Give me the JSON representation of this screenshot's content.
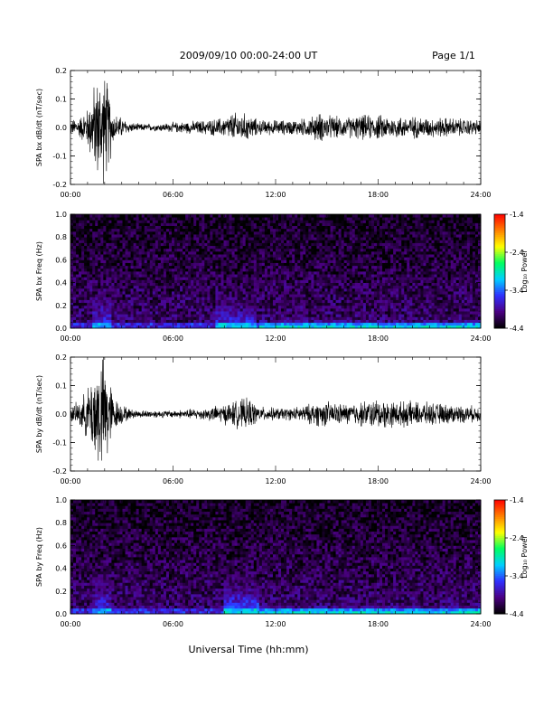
{
  "header": {
    "date_range": "2009/09/10  00:00-24:00 UT",
    "page": "Page 1/1"
  },
  "xlabel": "Universal Time (hh:mm)",
  "x_tick_labels": [
    "00:00",
    "06:00",
    "12:00",
    "18:00",
    "24:00"
  ],
  "chart_data": [
    {
      "type": "line",
      "title": "",
      "ylabel": "SPA bx dB/dt (nT/sec)",
      "xlabel": "",
      "xlim": [
        0,
        24
      ],
      "ylim": [
        -0.2,
        0.2
      ],
      "y_ticks": [
        -0.2,
        -0.1,
        0.0,
        0.1,
        0.2
      ],
      "y_tick_labels": [
        "-0.2",
        "-0.1",
        "0.0",
        "0.1",
        "0.2"
      ],
      "envelope": {
        "x_hours": [
          0,
          0.5,
          1.0,
          1.5,
          2.0,
          2.3,
          2.5,
          3.0,
          3.5,
          4,
          5,
          6,
          7,
          8,
          9,
          9.5,
          10,
          10.5,
          11,
          12,
          13,
          14,
          14.5,
          15,
          16,
          17,
          18,
          19,
          20,
          21,
          22,
          23,
          24
        ],
        "amplitude": [
          0.03,
          0.04,
          0.08,
          0.2,
          0.22,
          0.15,
          0.06,
          0.04,
          0.02,
          0.015,
          0.015,
          0.02,
          0.025,
          0.03,
          0.04,
          0.06,
          0.06,
          0.05,
          0.03,
          0.03,
          0.03,
          0.04,
          0.06,
          0.05,
          0.04,
          0.05,
          0.05,
          0.045,
          0.045,
          0.04,
          0.04,
          0.035,
          0.03
        ]
      }
    },
    {
      "type": "heatmap",
      "title": "",
      "ylabel": "SPA bx Freq (Hz)",
      "xlabel": "",
      "xlim": [
        0,
        24
      ],
      "ylim": [
        0,
        1.0
      ],
      "y_ticks": [
        0.0,
        0.2,
        0.4,
        0.6,
        0.8,
        1.0
      ],
      "y_tick_labels": [
        "0.0",
        "0.2",
        "0.4",
        "0.6",
        "0.8",
        "1.0"
      ],
      "colorbar": {
        "label": "Log₁₀ Power",
        "range": [
          -4.4,
          -1.4
        ],
        "ticks": [
          -1.4,
          -2.4,
          -3.4,
          -4.4
        ],
        "tick_labels": [
          "-1.4",
          "-2.4",
          "-3.4",
          "-4.4"
        ],
        "colors": [
          "#000000",
          "#4b0082",
          "#3030ff",
          "#00d0ff",
          "#00ff60",
          "#ffff00",
          "#ff8000",
          "#ff0000"
        ]
      },
      "features": [
        {
          "x_hours": [
            1.3,
            2.4
          ],
          "y_hz": [
            0,
            1.0
          ],
          "log_power": -3.6
        },
        {
          "x_hours": [
            8.5,
            10.9
          ],
          "y_hz": [
            0,
            0.6
          ],
          "log_power": -3.5
        },
        {
          "x_hours": [
            11,
            24
          ],
          "y_hz": [
            0,
            0.15
          ],
          "log_power": -3.3
        }
      ]
    },
    {
      "type": "line",
      "title": "",
      "ylabel": "SPA by dB/dt (nT/sec)",
      "xlabel": "",
      "xlim": [
        0,
        24
      ],
      "ylim": [
        -0.2,
        0.2
      ],
      "y_ticks": [
        -0.2,
        -0.1,
        0.0,
        0.1,
        0.2
      ],
      "y_tick_labels": [
        "-0.2",
        "-0.1",
        "0.0",
        "0.1",
        "0.2"
      ],
      "envelope": {
        "x_hours": [
          0,
          0.5,
          1.0,
          1.5,
          2.0,
          2.3,
          2.5,
          3.0,
          3.5,
          4,
          5,
          6,
          7,
          8,
          9,
          9.5,
          10,
          10.5,
          11,
          12,
          13,
          14,
          14.5,
          15,
          16,
          17,
          18,
          19,
          20,
          21,
          22,
          23,
          24
        ],
        "amplitude": [
          0.03,
          0.05,
          0.1,
          0.22,
          0.24,
          0.15,
          0.07,
          0.04,
          0.02,
          0.015,
          0.015,
          0.015,
          0.02,
          0.025,
          0.04,
          0.05,
          0.06,
          0.06,
          0.03,
          0.025,
          0.025,
          0.04,
          0.05,
          0.05,
          0.04,
          0.05,
          0.06,
          0.05,
          0.05,
          0.045,
          0.04,
          0.035,
          0.03
        ]
      }
    },
    {
      "type": "heatmap",
      "title": "",
      "ylabel": "SPA by Freq (Hz)",
      "xlabel": "",
      "xlim": [
        0,
        24
      ],
      "ylim": [
        0,
        1.0
      ],
      "y_ticks": [
        0.0,
        0.2,
        0.4,
        0.6,
        0.8,
        1.0
      ],
      "y_tick_labels": [
        "0.0",
        "0.2",
        "0.4",
        "0.6",
        "0.8",
        "1.0"
      ],
      "colorbar": {
        "label": "Log₁₀ Power",
        "range": [
          -4.4,
          -1.4
        ],
        "ticks": [
          -1.4,
          -2.4,
          -3.4,
          -4.4
        ],
        "tick_labels": [
          "-1.4",
          "-2.4",
          "-3.4",
          "-4.4"
        ],
        "colors": [
          "#000000",
          "#4b0082",
          "#3030ff",
          "#00d0ff",
          "#00ff60",
          "#ffff00",
          "#ff8000",
          "#ff0000"
        ]
      },
      "features": [
        {
          "x_hours": [
            1.3,
            2.4
          ],
          "y_hz": [
            0,
            1.0
          ],
          "log_power": -3.6
        },
        {
          "x_hours": [
            9,
            11
          ],
          "y_hz": [
            0,
            0.65
          ],
          "log_power": -3.4
        },
        {
          "x_hours": [
            11,
            24
          ],
          "y_hz": [
            0,
            0.15
          ],
          "log_power": -3.3
        }
      ]
    }
  ]
}
